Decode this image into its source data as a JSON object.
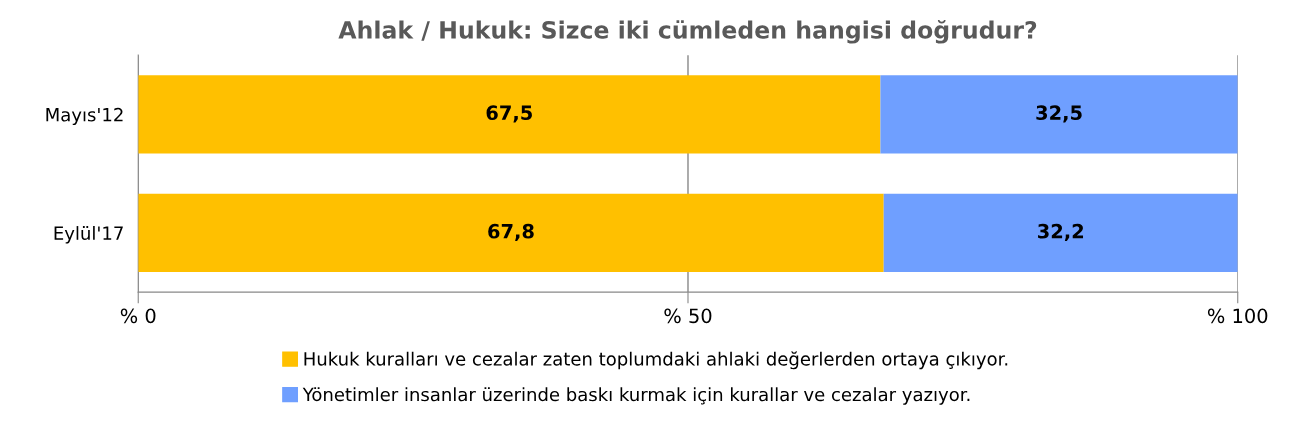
{
  "chart_data": {
    "type": "bar",
    "orientation": "horizontal",
    "stacked": true,
    "title": "Ahlak / Hukuk: Sizce iki cümleden hangisi doğrudur?",
    "categories": [
      "Mayıs'12",
      "Eylül'17"
    ],
    "series": [
      {
        "name": "Hukuk kuralları ve cezalar zaten toplumdaki ahlaki değerlerden ortaya çıkıyor.",
        "color": "#ffc000",
        "values": [
          67.5,
          67.8
        ],
        "value_labels": [
          "67,5",
          "67,8"
        ]
      },
      {
        "name": "Yönetimler insanlar üzerinde baskı kurmak için kurallar ve cezalar yazıyor.",
        "color": "#6f9fff",
        "values": [
          32.5,
          32.2
        ],
        "value_labels": [
          "32,5",
          "32,2"
        ]
      }
    ],
    "xlim": [
      0,
      100
    ],
    "xticks": [
      {
        "value": 0,
        "label": "% 0"
      },
      {
        "value": 50,
        "label": "% 50"
      },
      {
        "value": 100,
        "label": "% 100"
      }
    ],
    "grid": "x",
    "legend": "bottom"
  }
}
